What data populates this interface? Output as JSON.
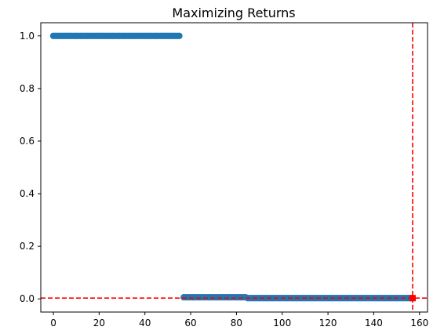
{
  "chart_data": {
    "type": "scatter",
    "title": "Maximizing Returns",
    "xlabel": "",
    "ylabel": "",
    "xlim": [
      -5.5,
      163.5
    ],
    "ylim": [
      -0.05,
      1.05
    ],
    "xticks": [
      0,
      20,
      40,
      60,
      80,
      100,
      120,
      140,
      160
    ],
    "yticks": [
      0.0,
      0.2,
      0.4,
      0.6,
      0.8,
      1.0
    ],
    "grid": false,
    "legend": "none",
    "series": [
      {
        "color": "#1f77b4",
        "segments": [
          {
            "x_start": 0,
            "x_end": 55,
            "y": 1.0
          },
          {
            "x_start": 57,
            "x_end": 84,
            "y": 0.006
          },
          {
            "x_start": 85,
            "x_end": 157,
            "y": 0.003
          }
        ]
      }
    ],
    "marker": {
      "x": 157,
      "y": 0.003,
      "color": "#ff0000",
      "shape": "square"
    },
    "reference_lines": [
      {
        "orientation": "vertical",
        "value": 157,
        "color": "#ff0000",
        "style": "dashed"
      },
      {
        "orientation": "horizontal",
        "value": 0.003,
        "color": "#ff0000",
        "style": "dashed"
      }
    ]
  }
}
